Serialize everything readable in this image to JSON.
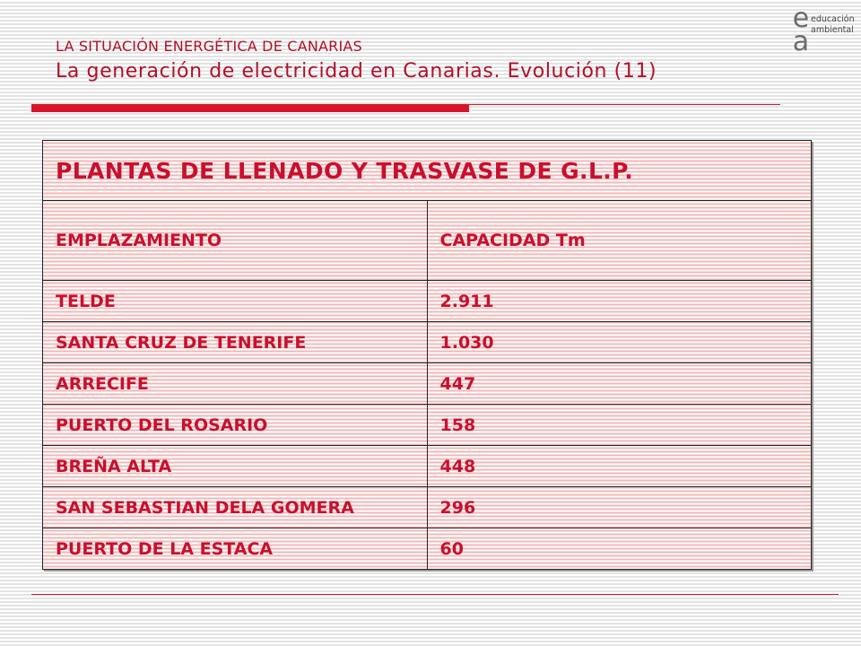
{
  "header": {
    "subject": "LA SITUACIÓN ENERGÉTICA DE CANARIAS",
    "title": "La generación de electricidad en Canarias. Evolución (11)"
  },
  "logo": {
    "letters": "e\na",
    "line1": "educación",
    "line2": "ambiental"
  },
  "colors": {
    "accent": "#d8142a",
    "text": "#c8102e"
  },
  "table": {
    "caption": "PLANTAS DE LLENADO Y TRASVASE DE G.L.P.",
    "headers": [
      "EMPLAZAMIENTO",
      "CAPACIDAD Tm"
    ],
    "rows": [
      [
        "TELDE",
        "2.911"
      ],
      [
        "SANTA CRUZ DE TENERIFE",
        "1.030"
      ],
      [
        "ARRECIFE",
        "447"
      ],
      [
        "PUERTO DEL ROSARIO",
        "158"
      ],
      [
        "BREÑA ALTA",
        "448"
      ],
      [
        "SAN SEBASTIAN DELA GOMERA",
        "296"
      ],
      [
        "PUERTO DE LA ESTACA",
        "60"
      ]
    ]
  }
}
